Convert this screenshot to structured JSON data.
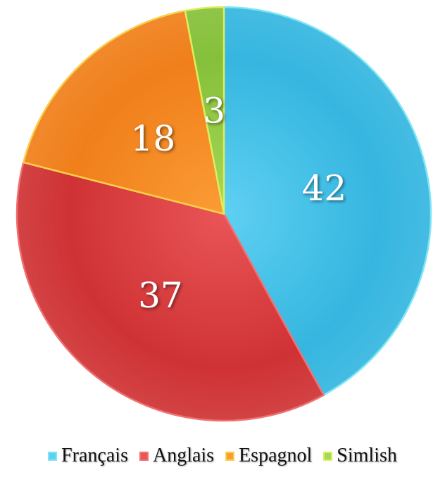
{
  "chart_data": {
    "type": "pie",
    "start": "top",
    "direction": "clockwise",
    "legend_position": "bottom",
    "slices": [
      {
        "label": "Français",
        "value": 42,
        "color": "#35b6e0",
        "light": "#5fd0f2",
        "border": "#7fe6f5"
      },
      {
        "label": "Anglais",
        "value": 37,
        "color": "#cf3234",
        "light": "#ea5557",
        "border": "#f07070"
      },
      {
        "label": "Espagnol",
        "value": 18,
        "color": "#f07f1a",
        "light": "#fb9c35",
        "border": "#f8d04a"
      },
      {
        "label": "Simlish",
        "value": 3,
        "color": "#86c03a",
        "light": "#a6d85a",
        "border": "#dcee5c"
      }
    ]
  }
}
